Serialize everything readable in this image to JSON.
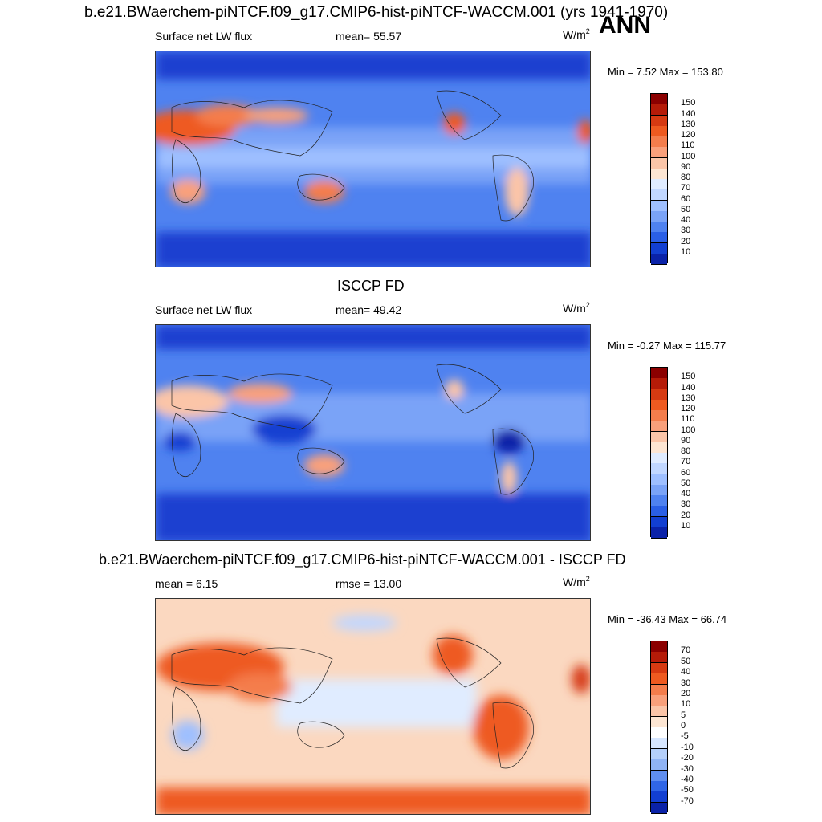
{
  "header": {
    "main_title": "b.e21.BWaerchem-piNTCF.f09_g17.CMIP6-hist-piNTCF-WACCM.001 (yrs 1941-1970)",
    "season": "ANN"
  },
  "chart_data": [
    {
      "type": "heatmap",
      "panel": "model",
      "title": "",
      "variable": "Surface net LW flux",
      "stat_left": "Surface net LW flux",
      "stat_mid": "mean=  55.57",
      "mean": 55.57,
      "units": "W/m",
      "units_sup": "2",
      "min_max": "Min =   7.52 Max = 153.80",
      "min": 7.52,
      "max": 153.8,
      "colorbar_levels": [
        "150",
        "140",
        "130",
        "120",
        "110",
        "100",
        "90",
        "80",
        "70",
        "60",
        "50",
        "40",
        "30",
        "20",
        "10"
      ],
      "colorbar_colors": [
        "#8b0000",
        "#b51b08",
        "#d63a12",
        "#ee5a20",
        "#f47d4c",
        "#f9a07b",
        "#fbc5a8",
        "#fde6d3",
        "#e0ecff",
        "#c1d7ff",
        "#9ebfff",
        "#7aa3f7",
        "#4f82f0",
        "#2a5fe6",
        "#123fd1",
        "#0a22a8"
      ]
    },
    {
      "type": "heatmap",
      "panel": "obs",
      "title": "ISCCP FD",
      "variable": "Surface net LW flux",
      "stat_left": "Surface net LW flux",
      "stat_mid": "mean=  49.42",
      "mean": 49.42,
      "units": "W/m",
      "units_sup": "2",
      "min_max": "Min =  -0.27 Max = 115.77",
      "min": -0.27,
      "max": 115.77,
      "colorbar_levels": [
        "150",
        "140",
        "130",
        "120",
        "110",
        "100",
        "90",
        "80",
        "70",
        "60",
        "50",
        "40",
        "30",
        "20",
        "10"
      ],
      "colorbar_colors": [
        "#8b0000",
        "#b51b08",
        "#d63a12",
        "#ee5a20",
        "#f47d4c",
        "#f9a07b",
        "#fbc5a8",
        "#fde6d3",
        "#e0ecff",
        "#c1d7ff",
        "#9ebfff",
        "#7aa3f7",
        "#4f82f0",
        "#2a5fe6",
        "#123fd1",
        "#0a22a8"
      ]
    },
    {
      "type": "heatmap",
      "panel": "diff",
      "title": "b.e21.BWaerchem-piNTCF.f09_g17.CMIP6-hist-piNTCF-WACCM.001 - ISCCP FD",
      "stat_left": "mean =   6.15",
      "stat_mid": "rmse =  13.00",
      "mean": 6.15,
      "rmse": 13.0,
      "units": "W/m",
      "units_sup": "2",
      "min_max": "Min = -36.43 Max =  66.74",
      "min": -36.43,
      "max": 66.74,
      "colorbar_levels": [
        "70",
        "50",
        "40",
        "30",
        "20",
        "10",
        "5",
        "0",
        "-5",
        "-10",
        "-20",
        "-30",
        "-40",
        "-50",
        "-70"
      ],
      "colorbar_colors": [
        "#8b0000",
        "#b51b08",
        "#d63a12",
        "#ee5a20",
        "#f47d4c",
        "#f9a07b",
        "#fbc5a8",
        "#fde6d3",
        "#ffffff",
        "#d6e6ff",
        "#b4cffa",
        "#8fb3f5",
        "#5f8ef0",
        "#3066e6",
        "#123fd1",
        "#0a22a8"
      ]
    }
  ]
}
